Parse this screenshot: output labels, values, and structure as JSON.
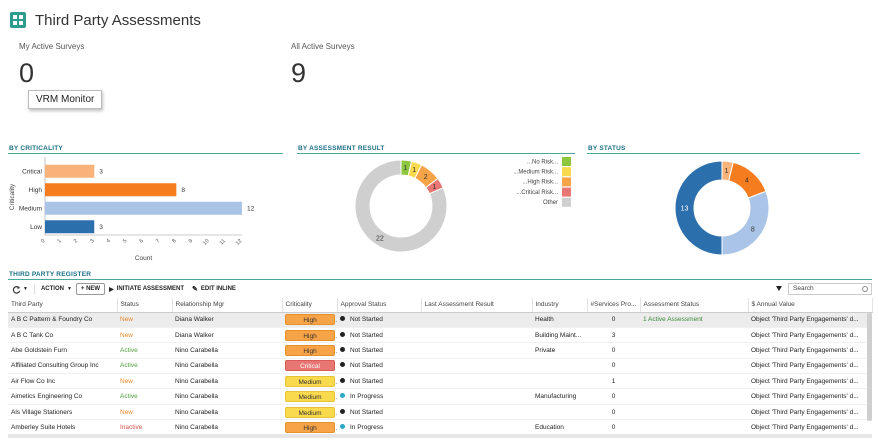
{
  "header": {
    "title": "Third Party Assessments",
    "app_icon": "grid-icon",
    "accent": "#2e9c8c"
  },
  "kpis": {
    "my_active": {
      "label": "My Active Surveys",
      "value": "0"
    },
    "all_active": {
      "label": "All Active Surveys",
      "value": "9"
    }
  },
  "tooltip": "VRM Monitor",
  "sections": {
    "criticality": "BY CRITICALITY",
    "assessment_result": "BY ASSESSMENT RESULT",
    "status": "BY STATUS",
    "register": "THIRD PARTY REGISTER"
  },
  "chart_data": [
    {
      "type": "bar",
      "orientation": "horizontal",
      "categories": [
        "Critical",
        "High",
        "Medium",
        "Low"
      ],
      "values": [
        3,
        8,
        12,
        3
      ],
      "colors": [
        "#f9b27a",
        "#f57c1f",
        "#a9c4e6",
        "#2c6fad"
      ],
      "xlabel": "Count",
      "ylabel": "Criticality",
      "xlim": [
        0,
        12
      ],
      "xticks": [
        "0",
        "1",
        "2",
        "3",
        "4",
        "5",
        "6",
        "7",
        "8",
        "9",
        "10",
        "11",
        "12"
      ]
    },
    {
      "type": "pie",
      "donut": true,
      "labels": [
        "...No Risk...",
        "...Medium Risk...",
        "...High Risk...",
        "...Critical Risk...",
        "Other"
      ],
      "values": [
        1,
        1,
        2,
        1,
        22
      ],
      "colors": [
        "#8dc63f",
        "#f9d94d",
        "#f7a347",
        "#e87774",
        "#cfcfcf"
      ],
      "legend": "left"
    },
    {
      "type": "pie",
      "donut": true,
      "values": [
        1,
        4,
        8,
        13
      ],
      "colors": [
        "#f9b27a",
        "#f57c1f",
        "#a9c4e6",
        "#2c6fad"
      ]
    }
  ],
  "toolbar": {
    "refresh_icon": "refresh-icon",
    "action": "ACTION",
    "new": "+ NEW",
    "initiate": "INITIATE ASSESSMENT",
    "edit_inline": "EDIT INLINE",
    "search_placeholder": "Search"
  },
  "table": {
    "columns": [
      "Third Party",
      "Status",
      "Relationship Mgr",
      "Criticality",
      "Approval Status",
      "Last Assessment Result",
      "Industry",
      "#Services Pro...",
      "Assessment Status",
      "$ Annual Value"
    ],
    "rows": [
      [
        "A B C Pattern & Foundry Co",
        "New",
        "Diana Walker",
        "High",
        "Not Started",
        "",
        "Health",
        "0",
        "1 Active Assessment",
        "Object 'Third Party Engagements' d..."
      ],
      [
        "A B C Tank Co",
        "New",
        "Diana Walker",
        "High",
        "Not Started",
        "",
        "Building Maint...",
        "3",
        "",
        "Object 'Third Party Engagements' d..."
      ],
      [
        "Abe Goldstein Furn",
        "Active",
        "Nino Carabella",
        "High",
        "Not Started",
        "",
        "Private",
        "0",
        "",
        "Object 'Third Party Engagements' d..."
      ],
      [
        "Affiliated Consulting Group Inc",
        "Active",
        "Nino Carabella",
        "Critical",
        "Not Started",
        "",
        "",
        "0",
        "",
        "Object 'Third Party Engagements' d..."
      ],
      [
        "Air Flow Co Inc",
        "New",
        "Nino Carabella",
        "Medium",
        "Not Started",
        "",
        "",
        "1",
        "",
        "Object 'Third Party Engagements' d..."
      ],
      [
        "Aimetics Engineering Co",
        "Active",
        "Nino Carabella",
        "Medium",
        "In Progress",
        "",
        "Manufacturing",
        "0",
        "",
        "Object 'Third Party Engagements' d..."
      ],
      [
        "Als Village Stationers",
        "New",
        "Nino Carabella",
        "Medium",
        "Not Started",
        "",
        "",
        "0",
        "",
        "Object 'Third Party Engagements' d..."
      ],
      [
        "Amberley Suite Hotels",
        "Inactive",
        "Nino Carabella",
        "High",
        "In Progress",
        "",
        "Education",
        "0",
        "",
        "Object 'Third Party Engagements' d..."
      ]
    ]
  }
}
